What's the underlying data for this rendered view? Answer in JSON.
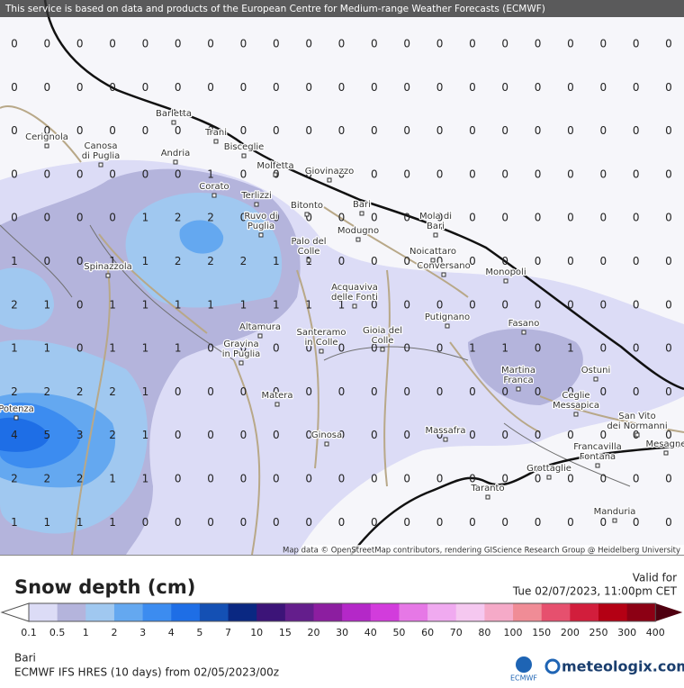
{
  "banner": "This service is based on data and products of the European Centre for Medium-range Weather Forecasts (ECMWF)",
  "attribution": "Map data © OpenStreetMap contributors, rendering GIScience Research Group @ Heidelberg University",
  "grid_values": [
    [
      0,
      0,
      0,
      0,
      0,
      0,
      0,
      0,
      0,
      0,
      0,
      0,
      0,
      0,
      0,
      0,
      0,
      0,
      0,
      0,
      0
    ],
    [
      0,
      0,
      0,
      0,
      0,
      0,
      0,
      0,
      0,
      0,
      0,
      0,
      0,
      0,
      0,
      0,
      0,
      0,
      0,
      0,
      0
    ],
    [
      0,
      0,
      0,
      0,
      0,
      0,
      0,
      0,
      0,
      0,
      0,
      0,
      0,
      0,
      0,
      0,
      0,
      0,
      0,
      0,
      0
    ],
    [
      0,
      0,
      0,
      0,
      0,
      0,
      1,
      0,
      0,
      0,
      0,
      0,
      0,
      0,
      0,
      0,
      0,
      0,
      0,
      0,
      0
    ],
    [
      0,
      0,
      0,
      0,
      1,
      2,
      2,
      0,
      0,
      0,
      0,
      0,
      0,
      0,
      0,
      0,
      0,
      0,
      0,
      0,
      0
    ],
    [
      1,
      0,
      0,
      1,
      1,
      2,
      2,
      2,
      1,
      1,
      0,
      0,
      0,
      0,
      0,
      0,
      0,
      0,
      0,
      0,
      0
    ],
    [
      2,
      1,
      0,
      1,
      1,
      1,
      1,
      1,
      1,
      1,
      1,
      0,
      0,
      0,
      0,
      0,
      0,
      0,
      0,
      0,
      0
    ],
    [
      1,
      1,
      0,
      1,
      1,
      1,
      0,
      0,
      0,
      0,
      0,
      0,
      0,
      0,
      1,
      1,
      0,
      1,
      0,
      0,
      0
    ],
    [
      2,
      2,
      2,
      2,
      1,
      0,
      0,
      0,
      0,
      0,
      0,
      0,
      0,
      0,
      0,
      0,
      0,
      0,
      0,
      0,
      0
    ],
    [
      4,
      5,
      3,
      2,
      1,
      0,
      0,
      0,
      0,
      0,
      0,
      0,
      0,
      0,
      0,
      0,
      0,
      0,
      0,
      0,
      0
    ],
    [
      2,
      2,
      2,
      1,
      1,
      0,
      0,
      0,
      0,
      0,
      0,
      0,
      0,
      0,
      0,
      0,
      0,
      0,
      0,
      0,
      0
    ],
    [
      1,
      1,
      1,
      1,
      0,
      0,
      0,
      0,
      0,
      0,
      0,
      0,
      0,
      0,
      0,
      0,
      0,
      0,
      0,
      0,
      0
    ]
  ],
  "places": [
    [
      "Barletta"
    ],
    [
      "Trani"
    ],
    [
      "Cerignola"
    ],
    [
      "Canosa",
      "di Puglia"
    ],
    [
      "Bisceglie"
    ],
    [
      "Andria"
    ],
    [
      "Molfetta"
    ],
    [
      "Giovinazzo"
    ],
    [
      "Corato"
    ],
    [
      "Terlizzi"
    ],
    [
      "Bitonto"
    ],
    [
      "Bari"
    ],
    [
      "Ruvo di",
      "Puglia"
    ],
    [
      "Mola di",
      "Bari"
    ],
    [
      "Modugno"
    ],
    [
      "Palo del",
      "Colle"
    ],
    [
      "Noicattaro"
    ],
    [
      "Conversano"
    ],
    [
      "Spinazzola"
    ],
    [
      "Monopoli"
    ],
    [
      "Acquaviva",
      "delle Fonti"
    ],
    [
      "Putignano"
    ],
    [
      "Fasano"
    ],
    [
      "Altamura"
    ],
    [
      "Santeramo",
      "in Colle"
    ],
    [
      "Gioia del",
      "Colle"
    ],
    [
      "Gravina",
      "in Puglia"
    ],
    [
      "Ostuni"
    ],
    [
      "Martina",
      "Franca"
    ],
    [
      "Ceglie",
      "Messapica"
    ],
    [
      "Matera"
    ],
    [
      "Potenza"
    ],
    [
      "San Vito",
      "dei Normanni"
    ],
    [
      "Ginosa"
    ],
    [
      "Massafra"
    ],
    [
      "Francavilla",
      "Fontana"
    ],
    [
      "Mesagne"
    ],
    [
      "Grottaglie"
    ],
    [
      "Taranto"
    ],
    [
      "Manduria"
    ]
  ],
  "legend": {
    "title": "Snow depth (cm)",
    "ticks": [
      0.1,
      0.5,
      1,
      2,
      3,
      4,
      5,
      7,
      10,
      15,
      20,
      30,
      40,
      50,
      60,
      70,
      80,
      100,
      150,
      200,
      250,
      300,
      400
    ],
    "colors": [
      "#dcdcf6",
      "#b4b4dc",
      "#a0c8f0",
      "#64a8f0",
      "#3c8cf0",
      "#1e6ee6",
      "#1450b4",
      "#0a2882",
      "#3c1478",
      "#641e8c",
      "#8c1ea0",
      "#b428c8",
      "#d23cdc",
      "#e678e6",
      "#f0aaf0",
      "#f5c8f0",
      "#f5aac8",
      "#f08c96",
      "#e6506e",
      "#d21e3c",
      "#b40014",
      "#8c0014"
    ]
  },
  "valid_label": "Valid for",
  "valid_time": "Tue 02/07/2023, 11:00pm CET",
  "location": "Bari",
  "model": "ECMWF IFS HRES (10 days) from 02/05/2023/00z",
  "ecmwf_logo": "ECMWF",
  "brand": "meteologix.com"
}
